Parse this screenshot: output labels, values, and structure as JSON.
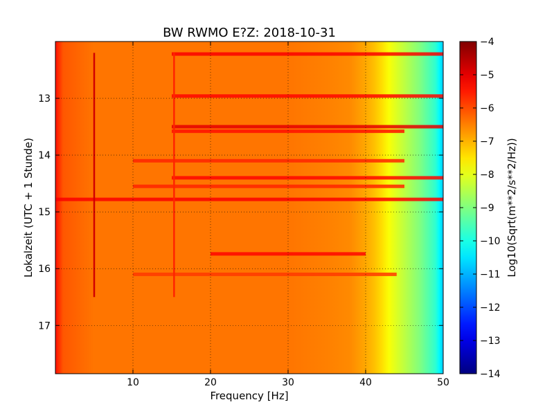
{
  "chart_data": {
    "type": "heatmap",
    "title": "BW RWMO E?Z: 2018-10-31",
    "xlabel": "Frequency [Hz]",
    "ylabel": "Lokalzeit (UTC + 1 Stunde)",
    "xlim": [
      0,
      50
    ],
    "ylim": [
      12,
      17.85
    ],
    "y_inverted": true,
    "x_ticks": [
      10,
      20,
      30,
      40,
      50
    ],
    "y_ticks": [
      13,
      14,
      15,
      16,
      17
    ],
    "grid": true,
    "colormap": "jet",
    "colorbar": {
      "label": "Log10(Sqrt(m**2/s**2/Hz))",
      "range": [
        -14,
        -4
      ],
      "ticks": [
        -4,
        -5,
        -6,
        -7,
        -8,
        -9,
        -10,
        -11,
        -12,
        -13,
        -14
      ]
    },
    "frequency_profile_hz": [
      0,
      1,
      5,
      10,
      15,
      20,
      25,
      30,
      35,
      38,
      40,
      41,
      42,
      43,
      44,
      45,
      46,
      47,
      48,
      49,
      49.5,
      50
    ],
    "frequency_profile_log10": [
      -5.4,
      -6.1,
      -6.4,
      -6.4,
      -6.4,
      -6.4,
      -6.4,
      -6.4,
      -6.5,
      -6.6,
      -6.9,
      -7.1,
      -7.4,
      -7.8,
      -8.1,
      -8.4,
      -8.7,
      -9.0,
      -9.4,
      -9.8,
      -10.3,
      -10.8
    ],
    "horizontal_bands": [
      {
        "time": 12.22,
        "f_start": 15,
        "f_end": 50,
        "level": -5.2
      },
      {
        "time": 12.96,
        "f_start": 15,
        "f_end": 50,
        "level": -5.3
      },
      {
        "time": 13.5,
        "f_start": 15,
        "f_end": 50,
        "level": -5.0
      },
      {
        "time": 13.58,
        "f_start": 15,
        "f_end": 45,
        "level": -5.4
      },
      {
        "time": 14.1,
        "f_start": 10,
        "f_end": 45,
        "level": -5.6
      },
      {
        "time": 14.4,
        "f_start": 15,
        "f_end": 50,
        "level": -5.3
      },
      {
        "time": 14.55,
        "f_start": 10,
        "f_end": 45,
        "level": -5.6
      },
      {
        "time": 14.78,
        "f_start": 0,
        "f_end": 50,
        "level": -5.2
      },
      {
        "time": 15.74,
        "f_start": 20,
        "f_end": 40,
        "level": -5.3
      },
      {
        "time": 16.1,
        "f_start": 10,
        "f_end": 44,
        "level": -5.8
      }
    ],
    "vertical_lines": [
      {
        "frequency": 5.0,
        "t_start": 12.2,
        "t_end": 16.5,
        "level": -4.8
      },
      {
        "frequency": 15.3,
        "t_start": 12.2,
        "t_end": 16.5,
        "level": -5.6
      }
    ]
  }
}
